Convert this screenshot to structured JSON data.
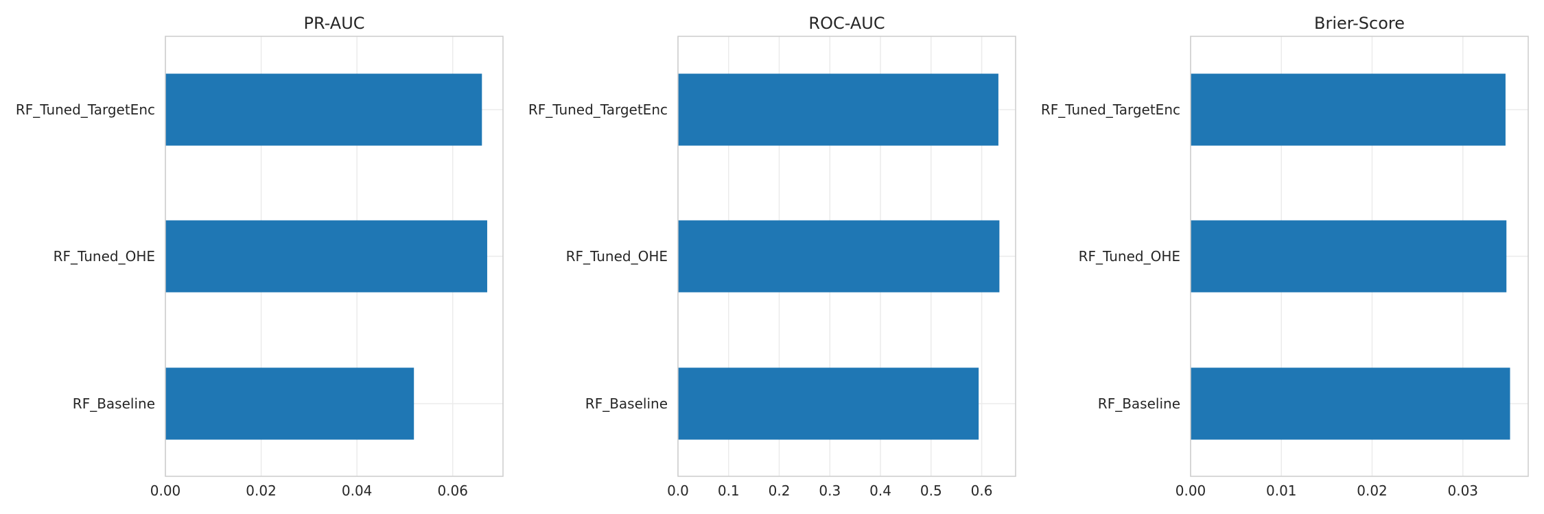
{
  "chart_data": [
    {
      "type": "bar",
      "orientation": "horizontal",
      "title": "PR-AUC",
      "categories": [
        "RF_Baseline",
        "RF_Tuned_OHE",
        "RF_Tuned_TargetEnc"
      ],
      "values": [
        0.0519,
        0.0672,
        0.0661
      ],
      "xlim": [
        0,
        0.0705
      ],
      "xticks": [
        0,
        0.02,
        0.04,
        0.06
      ],
      "xtick_labels": [
        "0.00",
        "0.02",
        "0.04",
        "0.06"
      ],
      "xlabel": "",
      "ylabel": "",
      "grid": true
    },
    {
      "type": "bar",
      "orientation": "horizontal",
      "title": "ROC-AUC",
      "categories": [
        "RF_Baseline",
        "RF_Tuned_OHE",
        "RF_Tuned_TargetEnc"
      ],
      "values": [
        0.594,
        0.635,
        0.633
      ],
      "xlim": [
        0,
        0.667
      ],
      "xticks": [
        0,
        0.1,
        0.2,
        0.3,
        0.4,
        0.5,
        0.6
      ],
      "xtick_labels": [
        "0.0",
        "0.1",
        "0.2",
        "0.3",
        "0.4",
        "0.5",
        "0.6"
      ],
      "xlabel": "",
      "ylabel": "",
      "grid": true
    },
    {
      "type": "bar",
      "orientation": "horizontal",
      "title": "Brier-Score",
      "categories": [
        "RF_Baseline",
        "RF_Tuned_OHE",
        "RF_Tuned_TargetEnc"
      ],
      "values": [
        0.0352,
        0.0348,
        0.0347
      ],
      "xlim": [
        0,
        0.0372
      ],
      "xticks": [
        0,
        0.01,
        0.02,
        0.03
      ],
      "xtick_labels": [
        "0.00",
        "0.01",
        "0.02",
        "0.03"
      ],
      "xlabel": "",
      "ylabel": "",
      "grid": true
    }
  ],
  "colors": {
    "bar": "#1f77b4",
    "grid": "#ebebeb",
    "axes": "#cccccc",
    "text": "#262626"
  }
}
